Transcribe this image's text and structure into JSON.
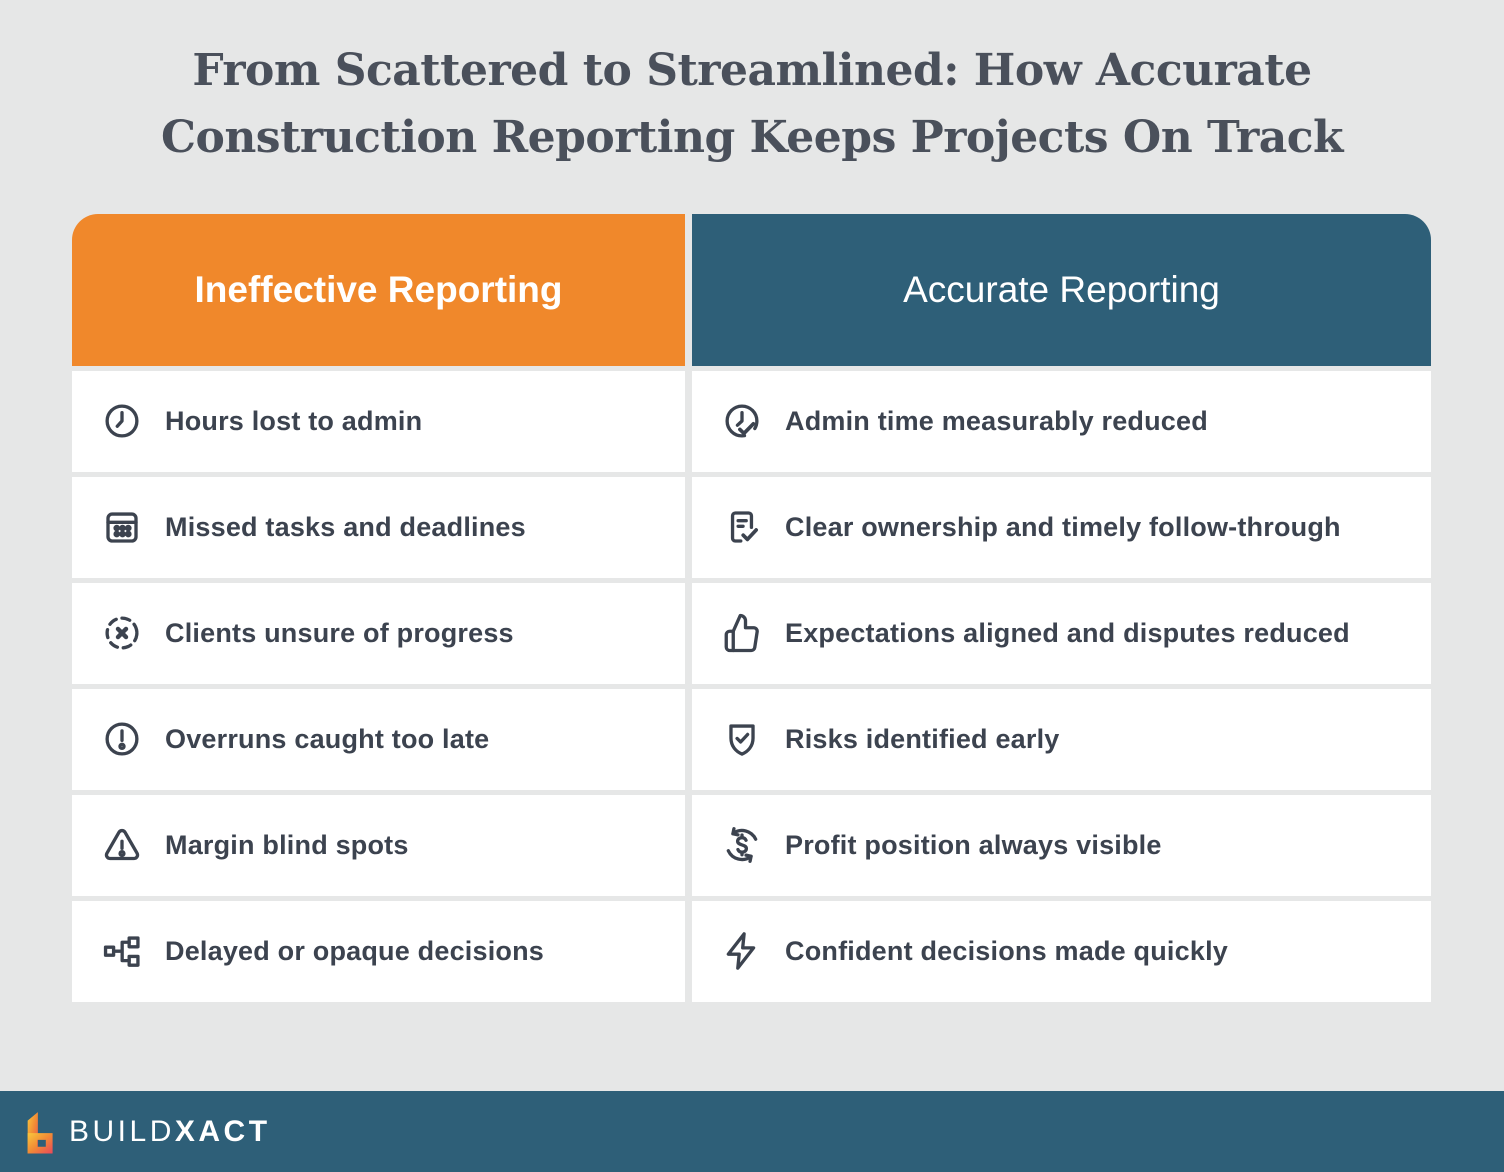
{
  "title": {
    "line1": "From Scattered to Streamlined: How Accurate",
    "line2": "Construction Reporting Keeps Projects On Track"
  },
  "colors": {
    "background": "#E6E7E7",
    "ineffective_header": "#F0882B",
    "accurate_header": "#2E5F78",
    "footer_bar": "#2E5F78",
    "row_background": "#FFFFFF",
    "text_dark": "#3C434F",
    "title_text": "#4A505B",
    "logo_gradient": [
      "#F9C83C",
      "#F18A35",
      "#E9485B"
    ]
  },
  "table": {
    "columns": [
      {
        "header": "Ineffective Reporting",
        "rows": [
          {
            "icon": "clock-icon",
            "label": "Hours lost to admin"
          },
          {
            "icon": "calendar-icon",
            "label": "Missed tasks and deadlines"
          },
          {
            "icon": "x-circle-dashed-icon",
            "label": "Clients unsure of progress"
          },
          {
            "icon": "alert-circle-icon",
            "label": "Overruns caught too late"
          },
          {
            "icon": "warning-triangle-icon",
            "label": "Margin blind spots"
          },
          {
            "icon": "decision-tree-icon",
            "label": "Delayed or opaque decisions"
          }
        ]
      },
      {
        "header": "Accurate Reporting",
        "rows": [
          {
            "icon": "clock-check-icon",
            "label": "Admin time measurably reduced"
          },
          {
            "icon": "document-check-icon",
            "label": "Clear ownership and timely follow-through"
          },
          {
            "icon": "thumbs-up-icon",
            "label": "Expectations aligned and disputes reduced"
          },
          {
            "icon": "shield-check-icon",
            "label": "Risks identified early"
          },
          {
            "icon": "dollar-cycle-icon",
            "label": "Profit position always visible"
          },
          {
            "icon": "lightning-icon",
            "label": "Confident decisions made quickly"
          }
        ]
      }
    ]
  },
  "footer": {
    "brand_part1": "BUILD",
    "brand_part2": "XACT",
    "logo": "buildxact-b-logo"
  }
}
